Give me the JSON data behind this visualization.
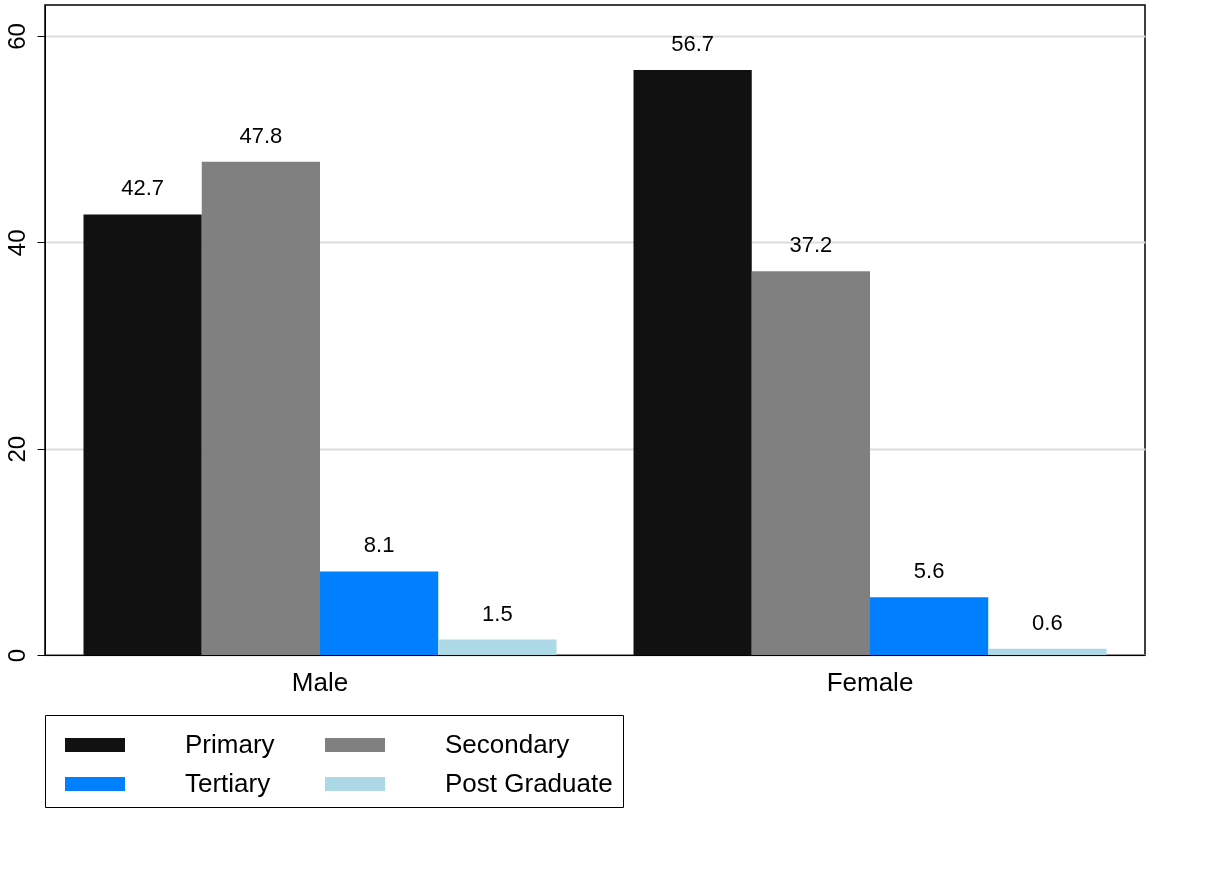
{
  "chart_data": {
    "type": "bar",
    "categories": [
      "Male",
      "Female"
    ],
    "series": [
      {
        "name": "Primary",
        "color": "#111111",
        "values": [
          42.7,
          56.7
        ]
      },
      {
        "name": "Secondary",
        "color": "#808080",
        "values": [
          47.8,
          37.2
        ]
      },
      {
        "name": "Tertiary",
        "color": "#0080ff",
        "values": [
          8.1,
          5.6
        ]
      },
      {
        "name": "Post Graduate",
        "color": "#add8e6",
        "values": [
          1.5,
          0.6
        ]
      }
    ],
    "ylim": [
      0,
      63
    ],
    "yticks": [
      0,
      20,
      40,
      60
    ],
    "grid": "y",
    "legend": "bottom",
    "data_labels": true
  }
}
